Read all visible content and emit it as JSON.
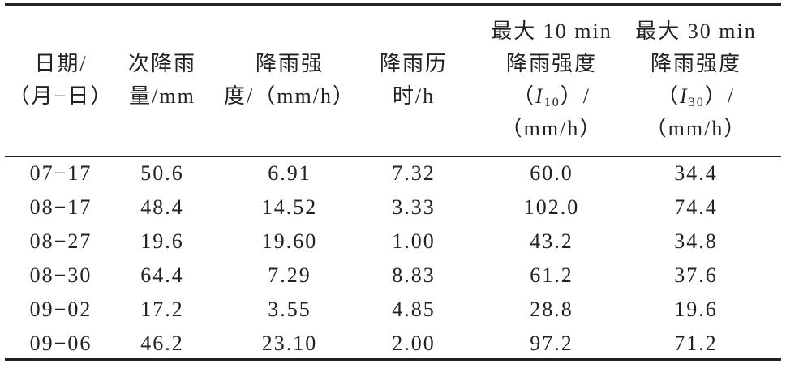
{
  "table": {
    "header": [
      {
        "lines": [
          "日期/",
          "（月−日）"
        ]
      },
      {
        "lines": [
          "次降雨",
          "量/mm"
        ]
      },
      {
        "lines": [
          "降雨强",
          "度/（mm/h）"
        ]
      },
      {
        "lines": [
          "降雨历",
          "时/h"
        ]
      },
      {
        "lines": [
          "最大 10 min",
          "降雨强度",
          {
            "open": "（",
            "var": "I",
            "sub": "10",
            "close": "）/"
          },
          "（mm/h）"
        ]
      },
      {
        "lines": [
          "最大 30 min",
          "降雨强度",
          {
            "open": "（",
            "var": "I",
            "sub": "30",
            "close": "）/"
          },
          "（mm/h）"
        ]
      }
    ],
    "rows": [
      [
        "07−17",
        "50.6",
        "6.91",
        "7.32",
        "60.0",
        "34.4"
      ],
      [
        "08−17",
        "48.4",
        "14.52",
        "3.33",
        "102.0",
        "74.4"
      ],
      [
        "08−27",
        "19.6",
        "19.60",
        "1.00",
        "43.2",
        "34.8"
      ],
      [
        "08−30",
        "64.4",
        "7.29",
        "8.83",
        "61.2",
        "37.6"
      ],
      [
        "09−02",
        "17.2",
        "3.55",
        "4.85",
        "28.8",
        "19.6"
      ],
      [
        "09−06",
        "46.2",
        "23.10",
        "2.00",
        "97.2",
        "71.2"
      ]
    ]
  }
}
